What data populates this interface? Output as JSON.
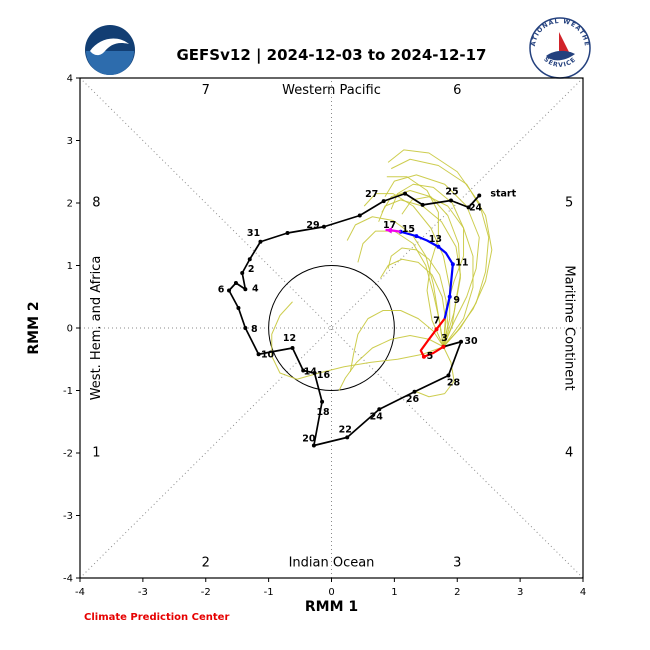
{
  "header": {
    "title": "GEFSv12 | 2024-12-03 to 2024-12-17",
    "nws_text_top": "NATIONAL WEATHER",
    "nws_text_bottom": "SERVICE"
  },
  "footer": {
    "credit": "Climate Prediction Center"
  },
  "chart_data": {
    "type": "line",
    "title": "GEFSv12 | 2024-12-03 to 2024-12-17",
    "xlabel": "RMM 1",
    "ylabel": "RMM 2",
    "xlim": [
      -4,
      4
    ],
    "ylim": [
      -4,
      4
    ],
    "ticks": [
      -4,
      -3,
      -2,
      -1,
      0,
      1,
      2,
      3,
      4
    ],
    "unit_circle_radius": 1,
    "grid_color": "#8a8a8a",
    "label_color": "#000000",
    "phase_numbers": [
      {
        "text": "7",
        "x": -2.0,
        "y": 3.8
      },
      {
        "text": "6",
        "x": 2.0,
        "y": 3.8
      },
      {
        "text": "8",
        "x": -3.74,
        "y": 2.0
      },
      {
        "text": "5",
        "x": 3.78,
        "y": 2.0
      },
      {
        "text": "1",
        "x": -3.74,
        "y": -2.0
      },
      {
        "text": "4",
        "x": 3.78,
        "y": -2.0
      },
      {
        "text": "2",
        "x": -2.0,
        "y": -3.76
      },
      {
        "text": "3",
        "x": 2.0,
        "y": -3.76
      }
    ],
    "region_labels": [
      {
        "text": "Western Pacific",
        "x": 0,
        "y": 3.8,
        "rotation": 0
      },
      {
        "text": "Indian Ocean",
        "x": 0,
        "y": -3.76,
        "rotation": 0
      },
      {
        "text": "West. Hem. and Africa",
        "x": -3.74,
        "y": 0.0,
        "rotation": -90
      },
      {
        "text": "Maritime Continent",
        "x": 3.78,
        "y": 0.0,
        "rotation": 90
      }
    ],
    "series": [
      {
        "name": "ensemble-members",
        "color": "#c8c83c",
        "width": 1,
        "paths": [
          [
            [
              1.78,
              -0.3
            ],
            [
              1.92,
              0.05
            ],
            [
              1.98,
              0.45
            ],
            [
              2.05,
              0.85
            ],
            [
              1.98,
              1.3
            ],
            [
              1.75,
              1.7
            ],
            [
              1.45,
              1.95
            ],
            [
              1.1,
              2.05
            ],
            [
              0.85,
              1.95
            ],
            [
              0.75,
              1.7
            ]
          ],
          [
            [
              1.78,
              -0.3
            ],
            [
              1.95,
              0.1
            ],
            [
              2.15,
              0.5
            ],
            [
              2.3,
              0.95
            ],
            [
              2.35,
              1.45
            ],
            [
              2.15,
              1.95
            ],
            [
              1.8,
              2.3
            ],
            [
              1.35,
              2.45
            ],
            [
              1.0,
              2.35
            ],
            [
              0.85,
              2.1
            ]
          ],
          [
            [
              1.78,
              -0.3
            ],
            [
              1.85,
              0.05
            ],
            [
              1.82,
              0.45
            ],
            [
              1.72,
              0.85
            ],
            [
              1.55,
              1.1
            ],
            [
              1.35,
              1.25
            ],
            [
              1.12,
              1.28
            ],
            [
              0.95,
              1.15
            ],
            [
              0.9,
              0.95
            ]
          ],
          [
            [
              1.78,
              -0.3
            ],
            [
              2.0,
              -0.05
            ],
            [
              2.25,
              0.3
            ],
            [
              2.45,
              0.75
            ],
            [
              2.55,
              1.25
            ],
            [
              2.45,
              1.8
            ],
            [
              2.15,
              2.3
            ],
            [
              1.7,
              2.6
            ],
            [
              1.25,
              2.7
            ],
            [
              0.95,
              2.55
            ]
          ],
          [
            [
              1.78,
              -0.3
            ],
            [
              1.72,
              0.1
            ],
            [
              1.62,
              0.55
            ],
            [
              1.5,
              1.0
            ],
            [
              1.3,
              1.35
            ],
            [
              1.0,
              1.55
            ],
            [
              0.7,
              1.55
            ],
            [
              0.5,
              1.35
            ],
            [
              0.42,
              1.05
            ]
          ],
          [
            [
              1.78,
              -0.3
            ],
            [
              1.88,
              0.15
            ],
            [
              1.88,
              0.65
            ],
            [
              1.78,
              1.15
            ],
            [
              1.58,
              1.6
            ],
            [
              1.3,
              1.95
            ],
            [
              0.98,
              2.15
            ],
            [
              0.7,
              2.15
            ],
            [
              0.52,
              1.95
            ]
          ],
          [
            [
              1.78,
              -0.3
            ],
            [
              1.62,
              -0.05
            ],
            [
              1.38,
              0.15
            ],
            [
              1.1,
              0.28
            ],
            [
              0.82,
              0.28
            ],
            [
              0.58,
              0.15
            ],
            [
              0.42,
              -0.1
            ],
            [
              0.35,
              -0.42
            ],
            [
              0.3,
              -0.7
            ]
          ],
          [
            [
              1.78,
              -0.3
            ],
            [
              1.82,
              0.1
            ],
            [
              1.76,
              0.5
            ],
            [
              1.6,
              0.85
            ],
            [
              1.38,
              1.05
            ],
            [
              1.12,
              1.1
            ],
            [
              0.9,
              1.0
            ],
            [
              0.78,
              0.8
            ]
          ],
          [
            [
              1.78,
              -0.3
            ],
            [
              2.05,
              0.0
            ],
            [
              2.3,
              0.4
            ],
            [
              2.45,
              0.9
            ],
            [
              2.5,
              1.45
            ],
            [
              2.35,
              2.0
            ],
            [
              2.0,
              2.5
            ],
            [
              1.55,
              2.8
            ],
            [
              1.15,
              2.85
            ],
            [
              0.9,
              2.65
            ]
          ],
          [
            [
              1.78,
              -0.3
            ],
            [
              1.55,
              -0.18
            ],
            [
              1.25,
              -0.12
            ],
            [
              0.95,
              -0.18
            ],
            [
              0.65,
              -0.32
            ],
            [
              0.4,
              -0.55
            ],
            [
              0.22,
              -0.8
            ],
            [
              0.12,
              -1.0
            ]
          ],
          [
            [
              1.78,
              -0.3
            ],
            [
              1.7,
              0.2
            ],
            [
              1.62,
              0.7
            ],
            [
              1.5,
              1.15
            ],
            [
              1.28,
              1.5
            ],
            [
              0.98,
              1.72
            ],
            [
              0.65,
              1.78
            ],
            [
              0.38,
              1.65
            ],
            [
              0.25,
              1.4
            ]
          ],
          [
            [
              1.78,
              -0.3
            ],
            [
              1.95,
              0.25
            ],
            [
              2.05,
              0.8
            ],
            [
              2.02,
              1.35
            ],
            [
              1.85,
              1.8
            ],
            [
              1.58,
              2.1
            ],
            [
              1.25,
              2.2
            ],
            [
              0.95,
              2.1
            ],
            [
              0.8,
              1.85
            ]
          ],
          [
            [
              1.78,
              -0.3
            ],
            [
              1.45,
              -0.42
            ],
            [
              1.05,
              -0.5
            ],
            [
              0.62,
              -0.55
            ],
            [
              0.2,
              -0.62
            ],
            [
              -0.2,
              -0.72
            ],
            [
              -0.55,
              -0.82
            ],
            [
              -0.82,
              -0.72
            ],
            [
              -0.95,
              -0.45
            ],
            [
              -0.95,
              -0.1
            ],
            [
              -0.82,
              0.2
            ],
            [
              -0.62,
              0.42
            ]
          ],
          [
            [
              1.78,
              -0.3
            ],
            [
              1.6,
              0.12
            ],
            [
              1.52,
              0.6
            ],
            [
              1.58,
              1.05
            ],
            [
              1.7,
              1.45
            ],
            [
              1.7,
              1.85
            ],
            [
              1.52,
              2.2
            ],
            [
              1.2,
              2.42
            ],
            [
              0.88,
              2.42
            ]
          ],
          [
            [
              1.78,
              -0.3
            ],
            [
              2.1,
              0.15
            ],
            [
              2.25,
              0.65
            ],
            [
              2.25,
              1.15
            ],
            [
              2.1,
              1.6
            ],
            [
              1.85,
              1.95
            ],
            [
              1.55,
              2.1
            ],
            [
              1.28,
              2.05
            ],
            [
              1.12,
              1.82
            ]
          ],
          [
            [
              1.78,
              -0.3
            ],
            [
              1.82,
              0.3
            ],
            [
              1.95,
              0.75
            ],
            [
              2.1,
              1.15
            ],
            [
              2.1,
              1.6
            ],
            [
              1.92,
              2.0
            ],
            [
              1.62,
              2.25
            ],
            [
              1.3,
              2.3
            ],
            [
              1.05,
              2.15
            ],
            [
              0.95,
              1.9
            ]
          ],
          [
            [
              1.78,
              -0.3
            ],
            [
              1.9,
              -0.55
            ],
            [
              1.95,
              -0.85
            ],
            [
              1.8,
              -1.05
            ],
            [
              1.55,
              -1.1
            ],
            [
              1.3,
              -1.0
            ]
          ]
        ]
      },
      {
        "name": "observed",
        "color": "#000000",
        "width": 1.7,
        "markers": "all",
        "points": [
          {
            "x": 2.35,
            "y": 2.12,
            "label": "start",
            "dx": 24,
            "dy": 1
          },
          {
            "x": 2.18,
            "y": 1.93,
            "label": "24",
            "dx": 7,
            "dy": 3
          },
          {
            "x": 1.9,
            "y": 2.04,
            "label": "25",
            "dx": 1,
            "dy": -6
          },
          {
            "x": 1.45,
            "y": 1.97
          },
          {
            "x": 1.17,
            "y": 2.15
          },
          {
            "x": 0.83,
            "y": 2.03,
            "label": "27",
            "dx": -12,
            "dy": -4
          },
          {
            "x": 0.45,
            "y": 1.8
          },
          {
            "x": -0.12,
            "y": 1.62,
            "label": "29",
            "dx": -11,
            "dy": 1
          },
          {
            "x": -0.7,
            "y": 1.52
          },
          {
            "x": -1.13,
            "y": 1.38,
            "label": "31",
            "dx": -7,
            "dy": -6
          },
          {
            "x": -1.3,
            "y": 1.1
          },
          {
            "x": -1.42,
            "y": 0.88,
            "label": "2",
            "dx": 9,
            "dy": -1
          },
          {
            "x": -1.37,
            "y": 0.62,
            "label": "4",
            "dx": 10,
            "dy": 2
          },
          {
            "x": -1.52,
            "y": 0.72
          },
          {
            "x": -1.63,
            "y": 0.6,
            "label": "6",
            "dx": -8,
            "dy": 2
          },
          {
            "x": -1.48,
            "y": 0.32
          },
          {
            "x": -1.37,
            "y": 0.0,
            "label": "8",
            "dx": 9,
            "dy": 4
          },
          {
            "x": -1.16,
            "y": -0.42,
            "label": "10",
            "dx": 9,
            "dy": 3
          },
          {
            "x": -0.62,
            "y": -0.32,
            "label": "12",
            "dx": -3,
            "dy": -7
          },
          {
            "x": -0.45,
            "y": -0.68,
            "label": "14",
            "dx": 7,
            "dy": 4
          },
          {
            "x": -0.27,
            "y": -0.72,
            "label": "16",
            "dx": 9,
            "dy": 5
          },
          {
            "x": -0.15,
            "y": -1.18,
            "label": "18",
            "dx": 1,
            "dy": 13
          },
          {
            "x": -0.28,
            "y": -1.88,
            "label": "20",
            "dx": -5,
            "dy": -4
          },
          {
            "x": 0.25,
            "y": -1.75,
            "label": "22",
            "dx": -2,
            "dy": -5
          },
          {
            "x": 0.76,
            "y": -1.3,
            "label": "24",
            "dx": -3,
            "dy": 10
          },
          {
            "x": 1.32,
            "y": -1.02,
            "label": "26",
            "dx": -2,
            "dy": 10
          },
          {
            "x": 1.86,
            "y": -0.76,
            "label": "28",
            "dx": 5,
            "dy": 10
          },
          {
            "x": 2.06,
            "y": -0.22,
            "label": "30",
            "dx": 10,
            "dy": 2
          },
          {
            "x": 1.78,
            "y": -0.3
          }
        ]
      },
      {
        "name": "forecast-days-3-8",
        "color": "#ff0000",
        "width": 2.2,
        "markers": "labeled",
        "points": [
          {
            "x": 1.78,
            "y": -0.3,
            "label": "3",
            "dx": 1,
            "dy": -6
          },
          {
            "x": 1.62,
            "y": -0.4
          },
          {
            "x": 1.47,
            "y": -0.46,
            "label": "5",
            "dx": 6,
            "dy": 2
          },
          {
            "x": 1.42,
            "y": -0.36
          },
          {
            "x": 1.55,
            "y": -0.18
          },
          {
            "x": 1.67,
            "y": -0.02,
            "label": "7",
            "dx": 0,
            "dy": -6
          },
          {
            "x": 1.8,
            "y": 0.15
          }
        ]
      },
      {
        "name": "forecast-days-9-17",
        "color": "#0000ff",
        "width": 2.2,
        "markers": "labeled",
        "points": [
          {
            "x": 1.8,
            "y": 0.15
          },
          {
            "x": 1.88,
            "y": 0.5,
            "label": "9",
            "dx": 7,
            "dy": 6
          },
          {
            "x": 1.93,
            "y": 1.02,
            "label": "11",
            "dx": 9,
            "dy": 1
          },
          {
            "x": 1.82,
            "y": 1.2
          },
          {
            "x": 1.7,
            "y": 1.3,
            "label": "13",
            "dx": -3,
            "dy": -5
          },
          {
            "x": 1.52,
            "y": 1.4
          },
          {
            "x": 1.35,
            "y": 1.47,
            "label": "15",
            "dx": -8,
            "dy": -4
          },
          {
            "x": 1.1,
            "y": 1.54,
            "label": "17",
            "dx": -11,
            "dy": -4
          }
        ]
      },
      {
        "name": "forecast-tip-arrow",
        "color": "#ee00ee",
        "width": 2.2,
        "paths": [
          [
            [
              1.1,
              1.54
            ],
            [
              0.97,
              1.56
            ],
            [
              0.86,
              1.57
            ]
          ]
        ],
        "arrow": true
      }
    ]
  }
}
